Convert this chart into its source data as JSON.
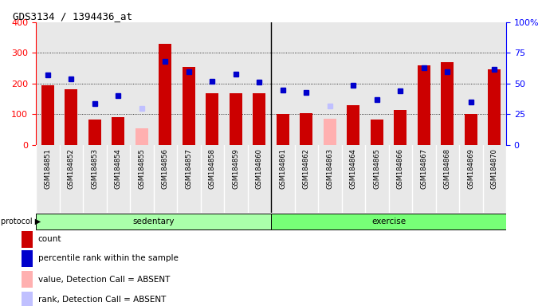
{
  "title": "GDS3134 / 1394436_at",
  "samples": [
    "GSM184851",
    "GSM184852",
    "GSM184853",
    "GSM184854",
    "GSM184855",
    "GSM184856",
    "GSM184857",
    "GSM184858",
    "GSM184859",
    "GSM184860",
    "GSM184861",
    "GSM184862",
    "GSM184863",
    "GSM184864",
    "GSM184865",
    "GSM184866",
    "GSM184867",
    "GSM184868",
    "GSM184869",
    "GSM184870"
  ],
  "count_values": [
    195,
    183,
    84,
    90,
    0,
    330,
    255,
    168,
    168,
    168,
    102,
    103,
    0,
    130,
    84,
    115,
    260,
    270,
    101,
    248
  ],
  "count_absent": [
    0,
    0,
    0,
    0,
    55,
    0,
    0,
    0,
    0,
    0,
    0,
    0,
    85,
    0,
    0,
    0,
    0,
    0,
    0,
    0
  ],
  "rank_values": [
    57,
    54,
    34,
    40,
    0,
    68,
    60,
    52,
    58,
    51,
    45,
    43,
    0,
    49,
    37,
    44,
    63,
    60,
    35,
    62
  ],
  "rank_absent": [
    0,
    0,
    0,
    0,
    30,
    0,
    0,
    0,
    0,
    0,
    0,
    0,
    32,
    0,
    0,
    0,
    0,
    0,
    0,
    0
  ],
  "sedentary_count": 10,
  "exercise_count": 10,
  "bar_color": "#cc0000",
  "absent_bar_color": "#ffb0b0",
  "rank_color": "#0000cc",
  "rank_absent_color": "#c0c0ff",
  "bg_color": "#e8e8e8",
  "sedentary_color": "#aaffaa",
  "exercise_color": "#77ff77",
  "left_ylim": [
    0,
    400
  ],
  "right_ylim": [
    0,
    100
  ],
  "left_yticks": [
    0,
    100,
    200,
    300,
    400
  ],
  "right_yticks": [
    0,
    25,
    50,
    75,
    100
  ],
  "right_yticklabels": [
    "0",
    "25",
    "50",
    "75",
    "100%"
  ],
  "legend_items": [
    [
      "#cc0000",
      "count"
    ],
    [
      "#0000cc",
      "percentile rank within the sample"
    ],
    [
      "#ffb0b0",
      "value, Detection Call = ABSENT"
    ],
    [
      "#c0c0ff",
      "rank, Detection Call = ABSENT"
    ]
  ]
}
